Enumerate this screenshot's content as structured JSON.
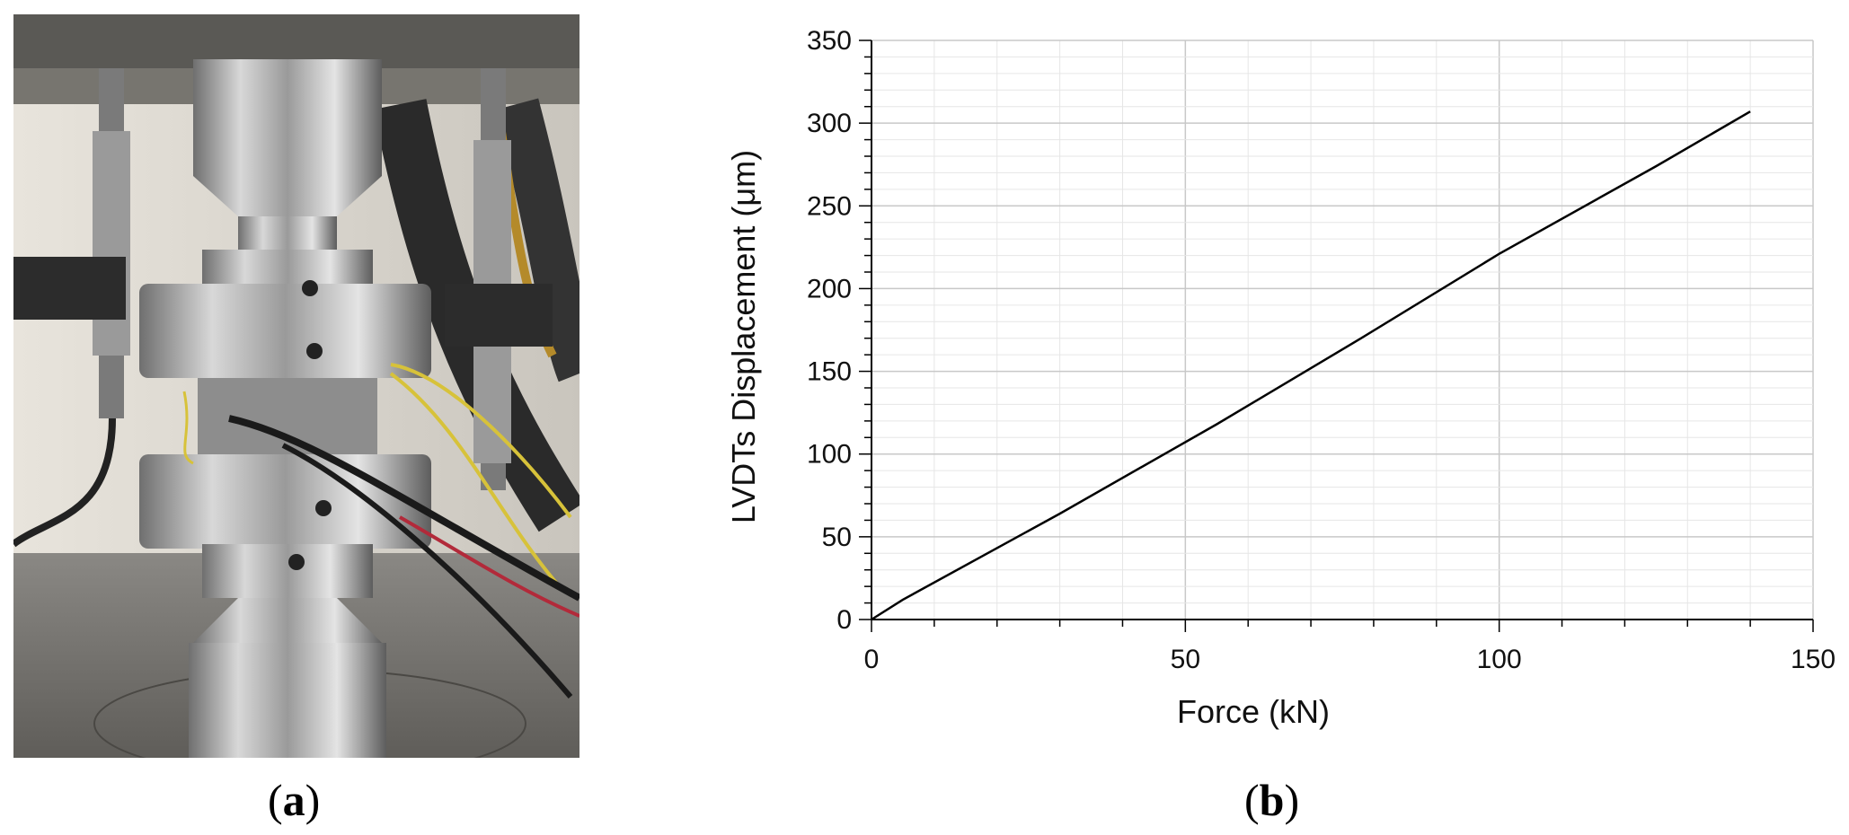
{
  "panels": {
    "a": {
      "label_open": "(",
      "label_letter": "a",
      "label_close": ")"
    },
    "b": {
      "label_open": "(",
      "label_letter": "b",
      "label_close": ")"
    }
  },
  "chart_data": {
    "type": "line",
    "title": "",
    "xlabel": "Force (kN)",
    "ylabel": "LVDTs Displacement (μm)",
    "xlim": [
      0,
      150
    ],
    "ylim": [
      0,
      350
    ],
    "x_ticks": [
      0,
      50,
      100,
      150
    ],
    "y_ticks": [
      0,
      50,
      100,
      150,
      200,
      250,
      300,
      350
    ],
    "grid": true,
    "legend": "none",
    "series": [
      {
        "color": "#000000",
        "x": [
          0,
          5,
          30,
          55,
          78,
          100,
          125,
          140
        ],
        "y": [
          0,
          12,
          64,
          118,
          170,
          221,
          274,
          307
        ]
      }
    ]
  }
}
